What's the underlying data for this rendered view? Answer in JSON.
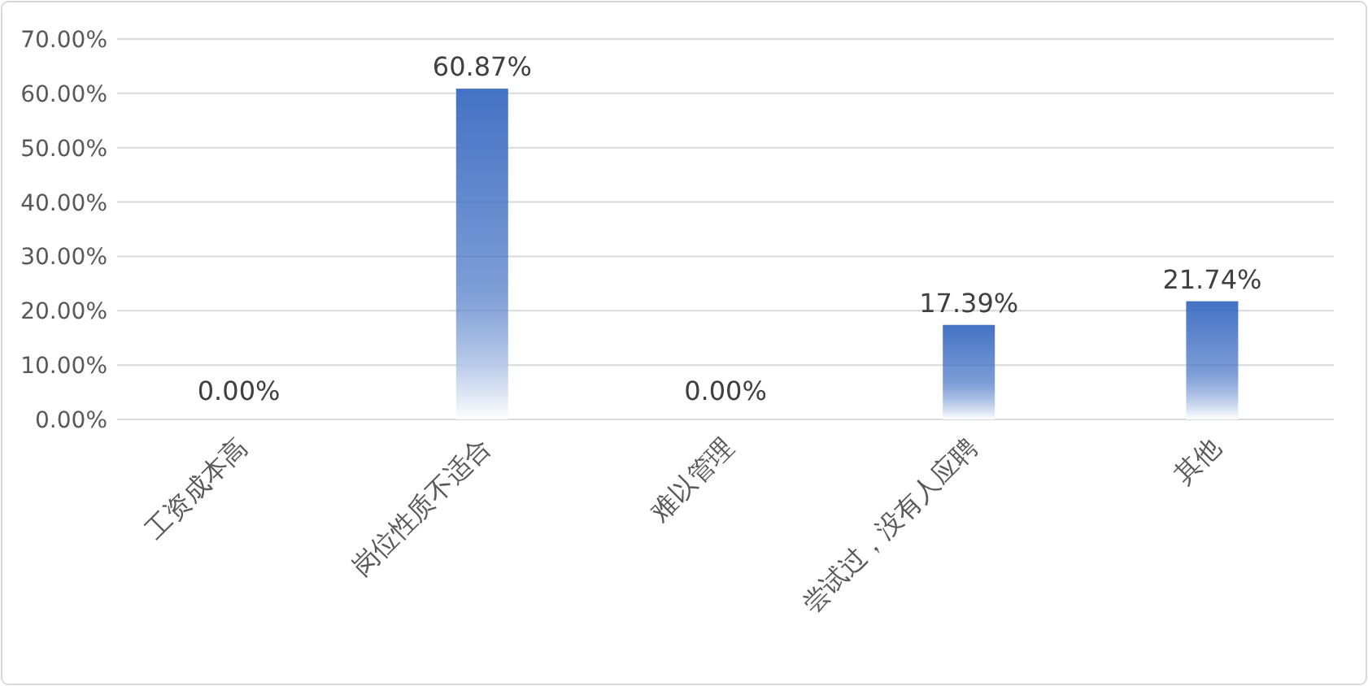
{
  "chart_data": {
    "type": "bar",
    "categories": [
      "工资成本高",
      "岗位性质不适合",
      "难以管理",
      "尝试过，没有人应聘",
      "其他"
    ],
    "values": [
      0,
      60.87,
      0,
      17.39,
      21.74
    ],
    "value_labels": [
      "0.00%",
      "60.87%",
      "0.00%",
      "17.39%",
      "21.74%"
    ],
    "color": "#4472c4",
    "ylim": [
      0,
      70
    ],
    "yticks": [
      {
        "value": 0,
        "label": "0.00%"
      },
      {
        "value": 10,
        "label": "10.00%"
      },
      {
        "value": 20,
        "label": "20.00%"
      },
      {
        "value": 30,
        "label": "30.00%"
      },
      {
        "value": 40,
        "label": "40.00%"
      },
      {
        "value": 50,
        "label": "50.00%"
      },
      {
        "value": 60,
        "label": "60.00%"
      },
      {
        "value": 70,
        "label": "70.00%"
      }
    ],
    "grid": "y"
  }
}
